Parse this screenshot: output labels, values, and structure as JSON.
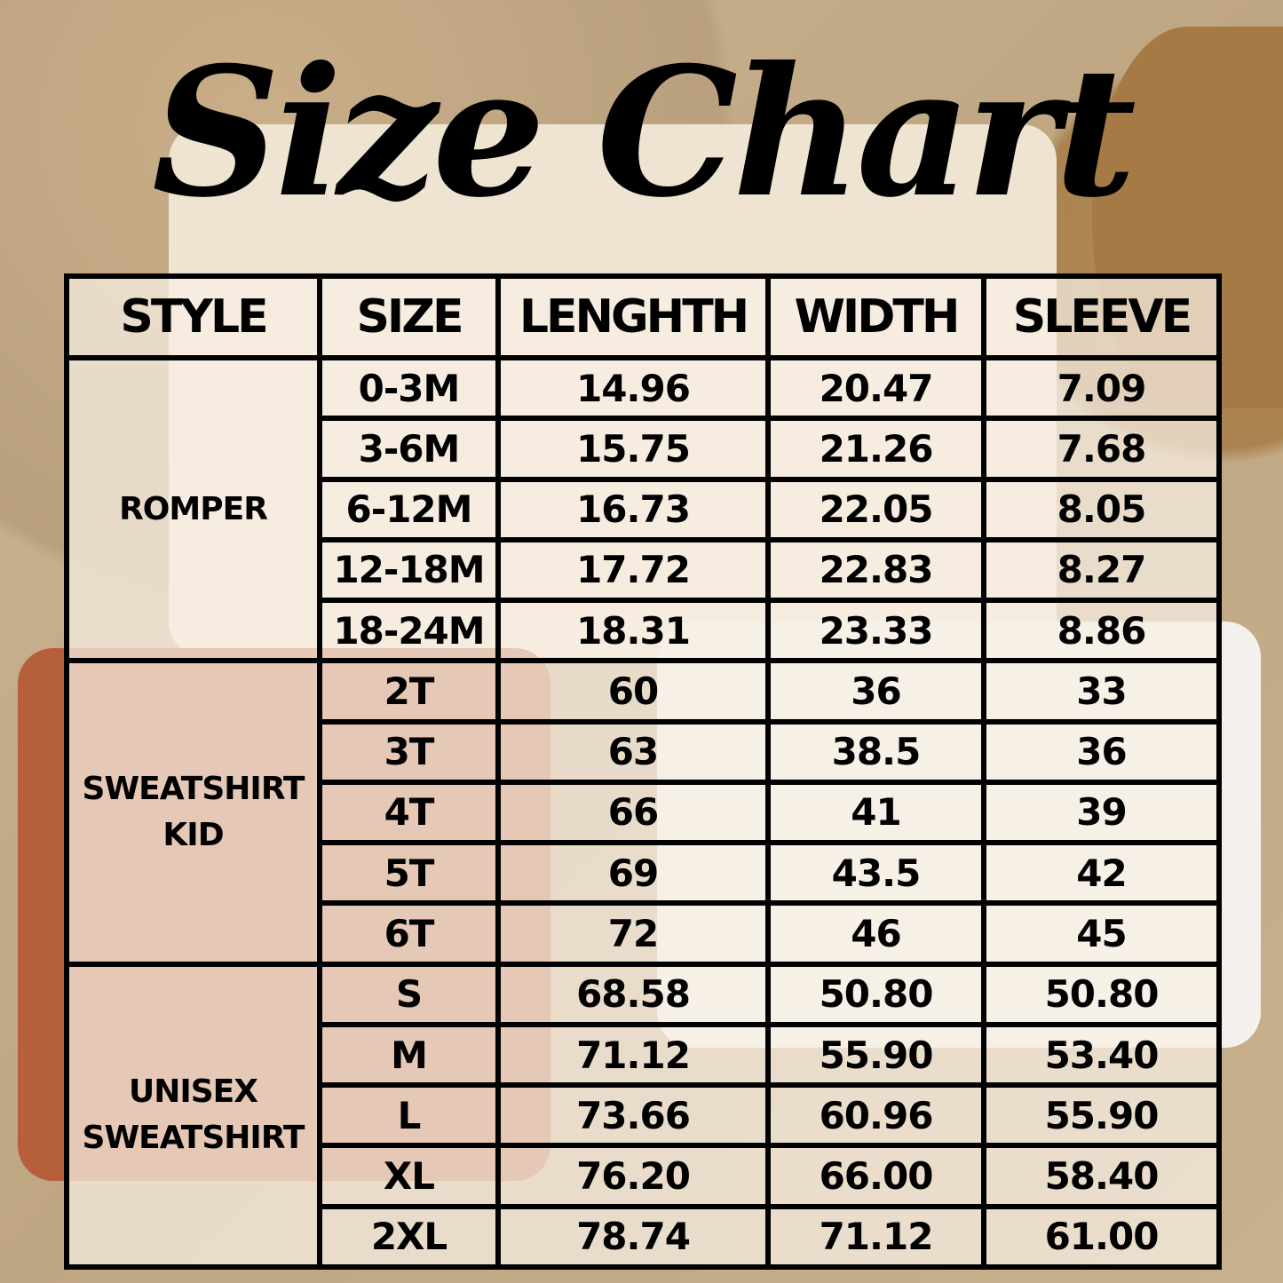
{
  "title": "Size Chart",
  "headers": [
    "STYLE",
    "SIZE",
    "LENGHTH",
    "WIDTH",
    "SLEEVE"
  ],
  "groups": [
    {
      "style": "ROMPER",
      "rows": [
        [
          "0-3M",
          "14.96",
          "20.47",
          "7.09"
        ],
        [
          "3-6M",
          "15.75",
          "21.26",
          "7.68"
        ],
        [
          "6-12M",
          "16.73",
          "22.05",
          "8.05"
        ],
        [
          "12-18M",
          "17.72",
          "22.83",
          "8.27"
        ],
        [
          "18-24M",
          "18.31",
          "23.33",
          "8.86"
        ]
      ]
    },
    {
      "style": "SWEATSHIRT KID",
      "rows": [
        [
          "2T",
          "60",
          "36",
          "33"
        ],
        [
          "3T",
          "63",
          "38.5",
          "36"
        ],
        [
          "4T",
          "66",
          "41",
          "39"
        ],
        [
          "5T",
          "69",
          "43.5",
          "42"
        ],
        [
          "6T",
          "72",
          "46",
          "45"
        ]
      ]
    },
    {
      "style": "UNISEX SWEATSHIRT",
      "rows": [
        [
          "S",
          "68.58",
          "50.80",
          "50.80"
        ],
        [
          "M",
          "71.12",
          "55.90",
          "53.40"
        ],
        [
          "L",
          "73.66",
          "60.96",
          "55.90"
        ],
        [
          "XL",
          "76.20",
          "66.00",
          "58.40"
        ],
        [
          "2XL",
          "78.74",
          "71.12",
          "61.00"
        ]
      ]
    }
  ]
}
